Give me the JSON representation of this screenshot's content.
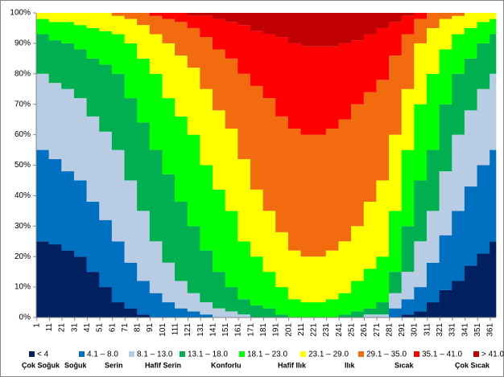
{
  "chart_data": {
    "type": "stacked_bar_100",
    "x": [
      1,
      11,
      21,
      31,
      41,
      51,
      61,
      71,
      81,
      91,
      101,
      111,
      121,
      131,
      141,
      151,
      161,
      171,
      181,
      191,
      201,
      211,
      221,
      231,
      241,
      251,
      261,
      271,
      281,
      291,
      301,
      311,
      321,
      331,
      341,
      351,
      361
    ],
    "xlim": [
      0.5,
      365.5
    ],
    "xticks": [
      1,
      11,
      21,
      31,
      41,
      51,
      61,
      71,
      81,
      91,
      101,
      111,
      121,
      131,
      141,
      151,
      161,
      171,
      181,
      191,
      201,
      211,
      221,
      231,
      241,
      251,
      261,
      271,
      281,
      291,
      301,
      311,
      321,
      331,
      341,
      351,
      361
    ],
    "ylim": [
      0,
      100
    ],
    "yticks": [
      {
        "value": 0,
        "label": "0%"
      },
      {
        "value": 10,
        "label": "10%"
      },
      {
        "value": 20,
        "label": "20%"
      },
      {
        "value": 30,
        "label": "30%"
      },
      {
        "value": 40,
        "label": "40%"
      },
      {
        "value": 50,
        "label": "50%"
      },
      {
        "value": 60,
        "label": "60%"
      },
      {
        "value": 70,
        "label": "70%"
      },
      {
        "value": 80,
        "label": "80%"
      },
      {
        "value": 90,
        "label": "90%"
      },
      {
        "value": 100,
        "label": "100%"
      }
    ],
    "series": [
      {
        "name": "< 4",
        "description": "Çok Soğuk",
        "color": "#002060",
        "values": [
          25,
          24,
          22,
          20,
          15,
          10,
          5,
          3,
          1,
          0,
          0,
          0,
          0,
          0,
          0,
          0,
          0,
          0,
          0,
          0,
          0,
          0,
          0,
          0,
          0,
          0,
          0,
          0,
          0,
          1,
          2,
          5,
          9,
          12,
          17,
          21,
          25
        ]
      },
      {
        "name": "4.1 – 8.0",
        "description": "Soğuk",
        "color": "#0070c0",
        "values": [
          30,
          28,
          26,
          25,
          23,
          22,
          20,
          15,
          11,
          8,
          5,
          3,
          2,
          1,
          0,
          0,
          0,
          0,
          0,
          0,
          0,
          0,
          0,
          0,
          0,
          0,
          0,
          0,
          3,
          5,
          8,
          13,
          18,
          23,
          26,
          29,
          30
        ]
      },
      {
        "name": "8.1 – 13.0",
        "description": "Serin",
        "color": "#b8cce4",
        "values": [
          25,
          25,
          27,
          27,
          28,
          29,
          30,
          27,
          23,
          17,
          13,
          9,
          6,
          4,
          3,
          2,
          1,
          0,
          0,
          0,
          0,
          0,
          0,
          0,
          0,
          0,
          1,
          1,
          5,
          9,
          15,
          17,
          21,
          25,
          25,
          25,
          25
        ]
      },
      {
        "name": "13.1 – 18.0",
        "description": "Hafif Serin",
        "color": "#00b050",
        "values": [
          13,
          14,
          15,
          16,
          19,
          22,
          25,
          27,
          29,
          30,
          29,
          26,
          22,
          17,
          12,
          8,
          5,
          4,
          3,
          1,
          0,
          0,
          0,
          0,
          1,
          2,
          2,
          4,
          7,
          15,
          20,
          20,
          22,
          20,
          17,
          15,
          13
        ]
      },
      {
        "name": "18.1 – 23.0",
        "description": "Konforlu",
        "color": "#00ff00",
        "values": [
          5,
          6,
          7,
          8,
          10,
          11,
          13,
          18,
          21,
          25,
          25,
          28,
          30,
          28,
          27,
          25,
          19,
          16,
          12,
          9,
          6,
          5,
          5,
          6,
          7,
          10,
          13,
          15,
          20,
          25,
          25,
          25,
          18,
          13,
          10,
          7,
          5
        ]
      },
      {
        "name": "23.1 – 29.0",
        "description": "Hafif Ilık",
        "color": "#ffff00",
        "values": [
          2,
          3,
          3,
          4,
          5,
          6,
          6,
          8,
          11,
          13,
          18,
          20,
          22,
          25,
          26,
          27,
          27,
          22,
          20,
          18,
          16,
          15,
          15,
          16,
          17,
          18,
          22,
          25,
          25,
          20,
          20,
          15,
          10,
          6,
          5,
          3,
          2
        ]
      },
      {
        "name": "29.1 – 35.0",
        "description": "Ilık",
        "color": "#f26b0f",
        "values": [
          0,
          0,
          0,
          0,
          0,
          0,
          1,
          2,
          4,
          6,
          8,
          11,
          13,
          17,
          20,
          23,
          28,
          34,
          37,
          38,
          40,
          40,
          40,
          40,
          40,
          40,
          36,
          33,
          26,
          18,
          8,
          5,
          2,
          1,
          0,
          0,
          0
        ]
      },
      {
        "name": "35.1 – 41.0",
        "description": "Sıcak",
        "color": "#ff0000",
        "values": [
          0,
          0,
          0,
          0,
          0,
          0,
          0,
          0,
          0,
          1,
          2,
          3,
          4,
          7,
          10,
          12,
          16,
          18,
          21,
          26,
          28,
          29,
          29,
          27,
          25,
          21,
          19,
          17,
          11,
          6,
          2,
          0,
          0,
          0,
          0,
          0,
          0
        ]
      },
      {
        "name": "> 41.0",
        "description": "Çok Sıcak",
        "color": "#c00000",
        "values": [
          0,
          0,
          0,
          0,
          0,
          0,
          0,
          0,
          0,
          0,
          0,
          0,
          1,
          1,
          2,
          3,
          4,
          6,
          7,
          8,
          10,
          11,
          11,
          11,
          10,
          9,
          7,
          5,
          3,
          1,
          0,
          0,
          0,
          0,
          0,
          0,
          0
        ]
      }
    ]
  }
}
